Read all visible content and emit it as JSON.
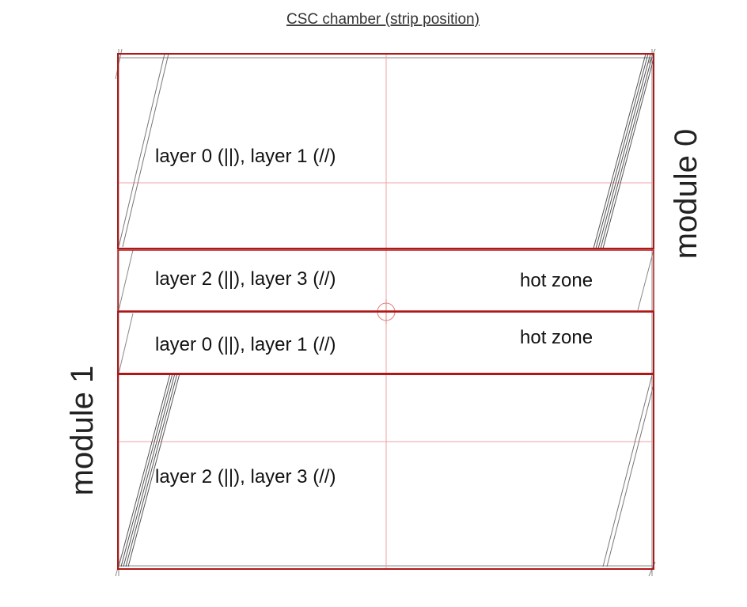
{
  "title": "CSC chamber (strip position)",
  "modules": {
    "module0": "module 0",
    "module1": "module 1"
  },
  "zones": [
    {
      "id": "m0-upper",
      "label": "layer  0 (||), layer 1 (//)",
      "extra": ""
    },
    {
      "id": "m0-lower",
      "label": "layer  2 (||), layer 3 (//)",
      "extra": "hot zone"
    },
    {
      "id": "m1-upper",
      "label": "layer  0 (||), layer 1 (//)",
      "extra": "hot zone"
    },
    {
      "id": "m1-lower",
      "label": "layer  2 (||), layer 3 (//)",
      "extra": ""
    }
  ],
  "colors": {
    "frame": "#b01818",
    "grid": "#f0a0a0",
    "strip": "#555555",
    "text": "#111111"
  }
}
